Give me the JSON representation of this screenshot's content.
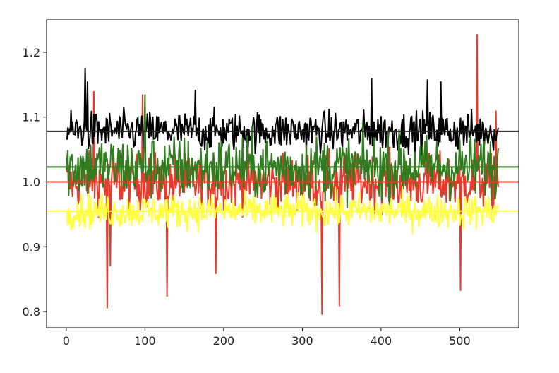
{
  "chart_data": {
    "type": "line",
    "title": "",
    "xlabel": "",
    "ylabel": "",
    "xlim": [
      -25,
      575
    ],
    "ylim": [
      0.775,
      1.25
    ],
    "x_ticks": [
      0,
      100,
      200,
      300,
      400,
      500
    ],
    "x_tick_labels": [
      "0",
      "100",
      "200",
      "300",
      "400",
      "500"
    ],
    "y_ticks": [
      0.8,
      0.9,
      1.0,
      1.1,
      1.2
    ],
    "y_tick_labels": [
      "0.8",
      "0.9",
      "1.0",
      "1.1",
      "1.2"
    ],
    "grid": false,
    "n_points": 550,
    "series": [
      {
        "color": "#e8392a",
        "center": 1.0,
        "spread": 0.035,
        "spikes": [
          {
            "x": 35,
            "value": 1.14
          },
          {
            "x": 52,
            "value": 0.805
          },
          {
            "x": 56,
            "value": 0.87
          },
          {
            "x": 97,
            "value": 1.135
          },
          {
            "x": 128,
            "value": 0.823
          },
          {
            "x": 190,
            "value": 0.858
          },
          {
            "x": 325,
            "value": 0.795
          },
          {
            "x": 347,
            "value": 0.808
          },
          {
            "x": 501,
            "value": 0.832
          },
          {
            "x": 522,
            "value": 1.228
          },
          {
            "x": 546,
            "value": 1.11
          }
        ]
      },
      {
        "color": "#000000",
        "center": 1.078,
        "spread": 0.025,
        "spikes": [
          {
            "x": 24,
            "value": 1.176
          },
          {
            "x": 27,
            "value": 1.155
          },
          {
            "x": 164,
            "value": 1.142
          },
          {
            "x": 388,
            "value": 1.16
          },
          {
            "x": 459,
            "value": 1.158
          },
          {
            "x": 476,
            "value": 1.155
          }
        ]
      },
      {
        "color": "#2f7d1e",
        "center": 1.023,
        "spread": 0.04,
        "spikes": [
          {
            "x": 100,
            "value": 1.135
          }
        ]
      },
      {
        "color": "#ffff3d",
        "center": 0.955,
        "spread": 0.022,
        "spikes": []
      }
    ],
    "hlines": [
      {
        "color": "#222222",
        "value": 1.078
      },
      {
        "color": "#2f7d1e",
        "value": 1.023
      },
      {
        "color": "#e8392a",
        "value": 1.0
      },
      {
        "color": "#ffff3d",
        "value": 0.955
      }
    ]
  }
}
